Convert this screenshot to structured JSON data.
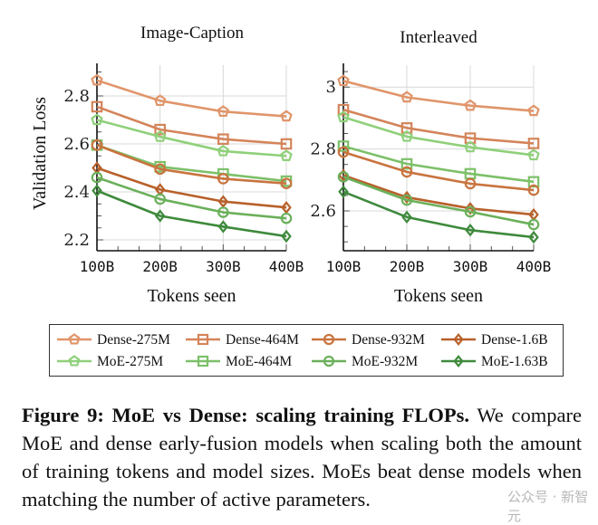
{
  "chart_data": [
    {
      "type": "line",
      "title": "Image-Caption",
      "xlabel": "Tokens seen",
      "ylabel": "Validation Loss",
      "x": [
        "100B",
        "200B",
        "300B",
        "400B"
      ],
      "ylim": [
        2.15,
        2.92
      ],
      "yticks": [
        2.2,
        2.4,
        2.6,
        2.8
      ],
      "ytick_labels": [
        "2.2",
        "2.4",
        "2.6",
        "2.8"
      ],
      "grid": true,
      "series": [
        {
          "name": "Dense-275M",
          "values": [
            2.865,
            2.78,
            2.735,
            2.715
          ]
        },
        {
          "name": "Dense-464M",
          "values": [
            2.755,
            2.66,
            2.62,
            2.6
          ]
        },
        {
          "name": "Dense-932M",
          "values": [
            2.595,
            2.495,
            2.455,
            2.435
          ]
        },
        {
          "name": "Dense-1.6B",
          "values": [
            2.5,
            2.41,
            2.36,
            2.335
          ]
        },
        {
          "name": "MoE-275M",
          "values": [
            2.7,
            2.63,
            2.57,
            2.55
          ]
        },
        {
          "name": "MoE-464M",
          "values": [
            2.595,
            2.505,
            2.475,
            2.445
          ]
        },
        {
          "name": "MoE-932M",
          "values": [
            2.46,
            2.37,
            2.315,
            2.29
          ]
        },
        {
          "name": "MoE-1.63B",
          "values": [
            2.405,
            2.3,
            2.255,
            2.215
          ]
        }
      ]
    },
    {
      "type": "line",
      "title": "Interleaved",
      "xlabel": "Tokens seen",
      "ylabel": "",
      "x": [
        "100B",
        "200B",
        "300B",
        "400B"
      ],
      "ylim": [
        2.5,
        3.05
      ],
      "yticks": [
        2.6,
        2.8,
        3.0
      ],
      "ytick_labels": [
        "2.6",
        "2.8",
        "3"
      ],
      "grid": true,
      "series": [
        {
          "name": "Dense-275M",
          "values": [
            3.02,
            2.967,
            2.94,
            2.923
          ]
        },
        {
          "name": "Dense-464M",
          "values": [
            2.927,
            2.868,
            2.835,
            2.818
          ]
        },
        {
          "name": "Dense-932M",
          "values": [
            2.79,
            2.726,
            2.688,
            2.667
          ]
        },
        {
          "name": "Dense-1.6B",
          "values": [
            2.715,
            2.644,
            2.608,
            2.588
          ]
        },
        {
          "name": "MoE-275M",
          "values": [
            2.903,
            2.84,
            2.806,
            2.78
          ]
        },
        {
          "name": "MoE-464M",
          "values": [
            2.809,
            2.752,
            2.72,
            2.694
          ]
        },
        {
          "name": "MoE-932M",
          "values": [
            2.71,
            2.635,
            2.597,
            2.556
          ]
        },
        {
          "name": "MoE-1.63B",
          "values": [
            2.662,
            2.58,
            2.538,
            2.515
          ]
        }
      ]
    }
  ],
  "legend": {
    "placement": "bottom",
    "entries": [
      {
        "name": "Dense-275M",
        "marker": "pentagon",
        "color": "#E0956A"
      },
      {
        "name": "Dense-464M",
        "marker": "square",
        "color": "#D4845A"
      },
      {
        "name": "Dense-932M",
        "marker": "circle",
        "color": "#C9743F"
      },
      {
        "name": "Dense-1.6B",
        "marker": "diamond",
        "color": "#B8602A"
      },
      {
        "name": "MoE-275M",
        "marker": "pentagon",
        "color": "#8FD07A"
      },
      {
        "name": "MoE-464M",
        "marker": "square",
        "color": "#7CC068"
      },
      {
        "name": "MoE-932M",
        "marker": "circle",
        "color": "#6BB05A"
      },
      {
        "name": "MoE-1.63B",
        "marker": "diamond",
        "color": "#3E8A3C"
      }
    ]
  },
  "caption": {
    "label": "Figure 9: MoE vs Dense: scaling training FLOPs.",
    "text": " We compare MoE and dense early-fusion models when scaling both the amount of training tokens and model sizes.  MoEs beat dense models when matching the number of active parameters."
  },
  "watermark": "公众号 · 新智元"
}
